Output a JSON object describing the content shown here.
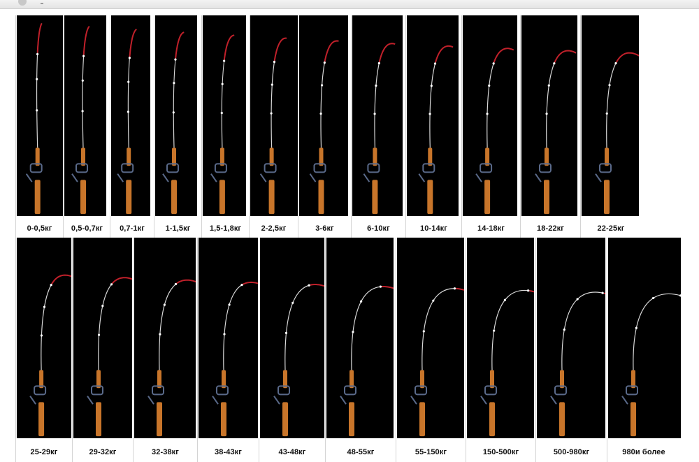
{
  "rows": [
    {
      "labels": [
        "0-0,5кг",
        "0,5-0,7кг",
        "0,7-1кг",
        "1-1,5кг",
        "1,5-1,8кг",
        "2-2,5кг",
        "3-6кг",
        "6-10кг",
        "10-14кг",
        "14-18кг",
        "18-22кг",
        "22-25кг"
      ]
    },
    {
      "labels": [
        "25-29кг",
        "29-32кг",
        "32-38кг",
        "38-43кг",
        "43-48кг",
        "48-55кг",
        "55-150кг",
        "150-500кг",
        "500-980кг",
        "980и более"
      ]
    }
  ],
  "colors": {
    "background": "#000000",
    "rod": "#d8d8d8",
    "rod_tip": "#c0202a",
    "handle": "#c8752a",
    "reel": "#5a6a8a",
    "label_text": "#111111"
  }
}
